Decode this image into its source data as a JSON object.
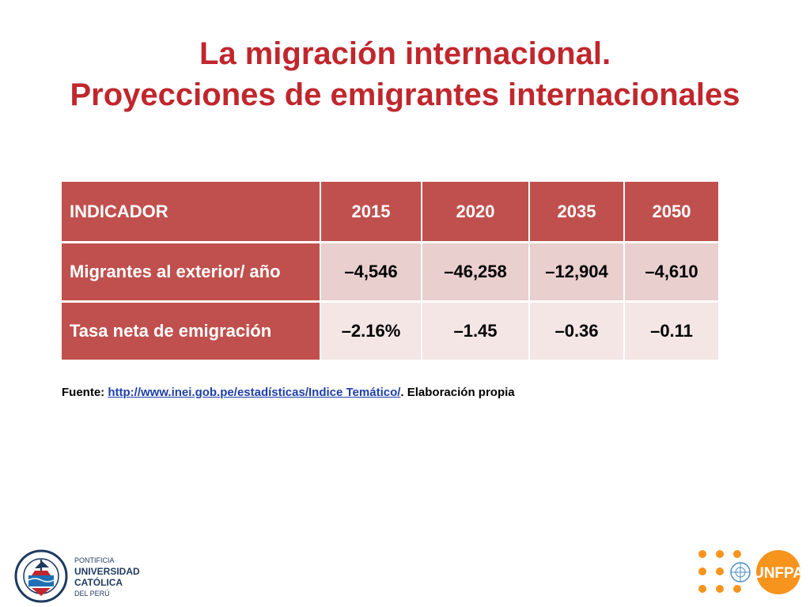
{
  "title": {
    "line1": "La migración internacional.",
    "line2": "Proyecciones de emigrantes internacionales"
  },
  "table": {
    "header": [
      "INDICADOR",
      "2015",
      "2020",
      "2035",
      "2050"
    ],
    "rows": [
      {
        "label": "Migrantes al exterior/ año",
        "values": [
          "–4,546",
          "–46,258",
          "–12,904",
          "–4,610"
        ]
      },
      {
        "label": "Tasa neta de emigración",
        "values": [
          "–2.16%",
          "–1.45",
          "–0.36",
          "–0.11"
        ]
      }
    ]
  },
  "source": {
    "prefix": "Fuente: ",
    "link": "http://www.inei.gob.pe/estadísticas/Indice Temático/",
    "suffix": ". Elaboración propia"
  },
  "logos": {
    "pucp": {
      "line1": "PONTIFICIA",
      "line2": "UNIVERSIDAD",
      "line3": "CATÓLICA",
      "line4": "DEL PERÚ",
      "motto": "ET LUX IN TENEBRIS LUCET",
      "year": "MCMXVII"
    },
    "unfpa": {
      "text": "UNFPA"
    }
  },
  "colors": {
    "title": "#c0272d",
    "header_bg": "#c0504d",
    "row1_bg": "#e9cfce",
    "row2_bg": "#f3e6e5",
    "link": "#1f3fa8",
    "unfpa_orange": "#f7941d"
  }
}
